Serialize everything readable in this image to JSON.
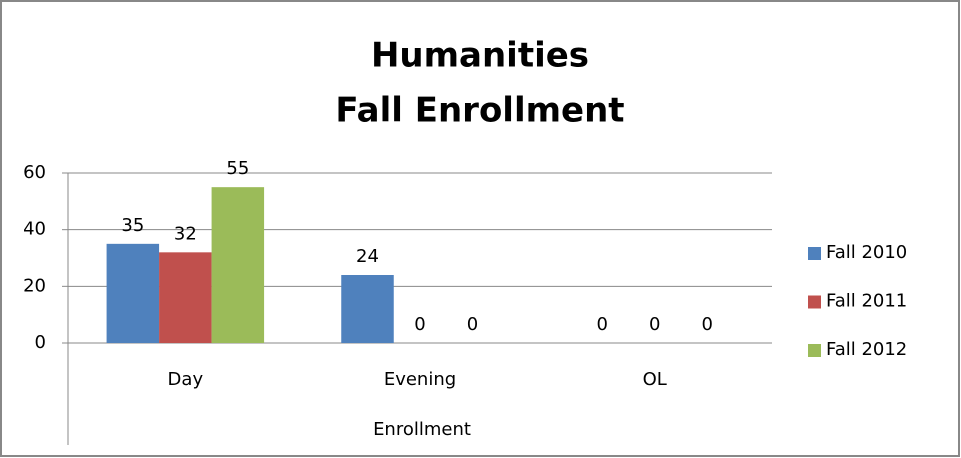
{
  "chart_data": {
    "type": "bar",
    "title": [
      "Humanities",
      "Fall Enrollment"
    ],
    "x_label": "Enrollment",
    "categories": [
      "Day",
      "Evening",
      "OL"
    ],
    "series": [
      {
        "name": "Fall 2010",
        "color": "#4f81bd",
        "values": [
          35,
          24,
          0
        ]
      },
      {
        "name": "Fall 2011",
        "color": "#c0504d",
        "values": [
          32,
          0,
          0
        ]
      },
      {
        "name": "Fall 2012",
        "color": "#9bbb59",
        "values": [
          55,
          0,
          0
        ]
      }
    ],
    "ylim": [
      0,
      60
    ],
    "yticks": [
      0,
      20,
      40,
      60
    ],
    "grid": true,
    "legend": "right"
  }
}
